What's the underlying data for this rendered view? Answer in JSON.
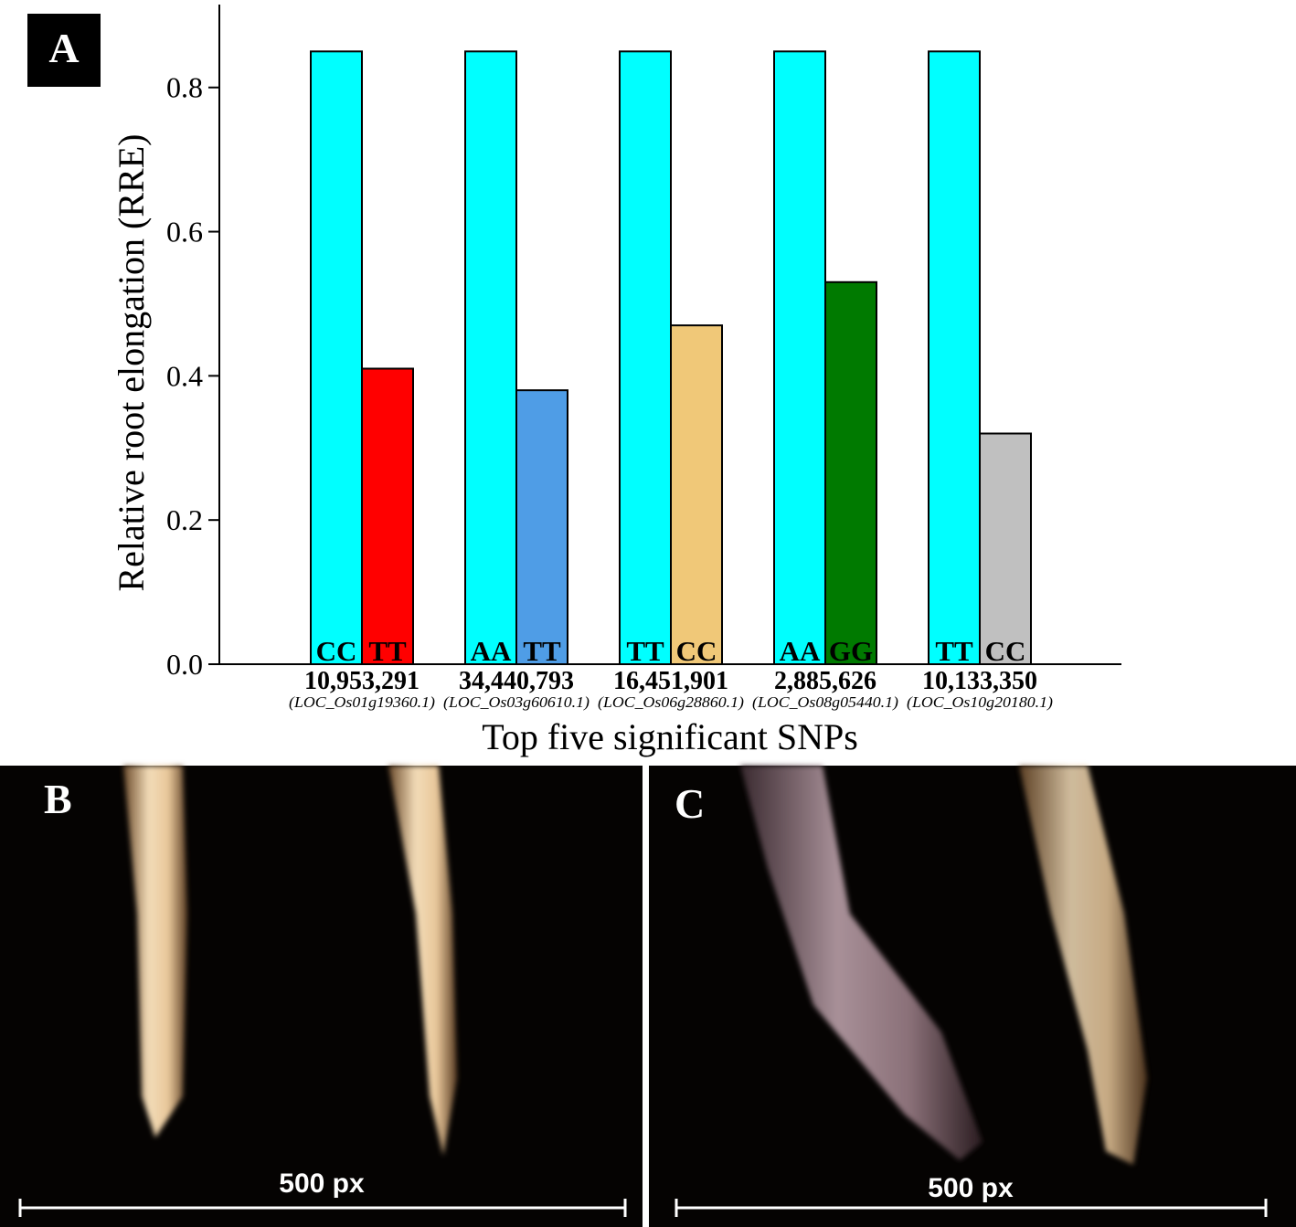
{
  "chart_data": {
    "type": "bar",
    "panel_label": "A",
    "y_label": "Relative root elongation (RRE)",
    "x_label": "Top five significant SNPs",
    "ylim": [
      0,
      0.915
    ],
    "yticks": [
      {
        "value": 0,
        "label": "0.0"
      },
      0.2,
      0.4,
      0.6,
      0.8
    ],
    "groups": [
      {
        "snp": "10,953,291",
        "locus": "(LOC_Os01g19360.1)",
        "bars": [
          {
            "genotype": "CC",
            "color": "#00ffff",
            "value": 0.85
          },
          {
            "genotype": "TT",
            "color": "#ff0000",
            "value": 0.41
          }
        ]
      },
      {
        "snp": "34,440,793",
        "locus": "(LOC_Os03g60610.1)",
        "bars": [
          {
            "genotype": "AA",
            "color": "#00ffff",
            "value": 0.85
          },
          {
            "genotype": "TT",
            "color": "#4f9de6",
            "value": 0.38
          }
        ]
      },
      {
        "snp": "16,451,901",
        "locus": "(LOC_Os06g28860.1)",
        "bars": [
          {
            "genotype": "TT",
            "color": "#00ffff",
            "value": 0.85
          },
          {
            "genotype": "CC",
            "color": "#f0c878",
            "value": 0.47
          }
        ]
      },
      {
        "snp": "2,885,626",
        "locus": "(LOC_Os08g05440.1)",
        "bars": [
          {
            "genotype": "AA",
            "color": "#00ffff",
            "value": 0.85
          },
          {
            "genotype": "GG",
            "color": "#007a00",
            "value": 0.53
          }
        ]
      },
      {
        "snp": "10,133,350",
        "locus": "(LOC_Os10g20180.1)",
        "bars": [
          {
            "genotype": "TT",
            "color": "#00ffff",
            "value": 0.85
          },
          {
            "genotype": "CC",
            "color": "#c0c0c0",
            "value": 0.32
          }
        ]
      }
    ]
  },
  "photos": [
    {
      "panel_label": "B",
      "scale_label": "500 px"
    },
    {
      "panel_label": "C",
      "scale_label": "500 px"
    }
  ]
}
